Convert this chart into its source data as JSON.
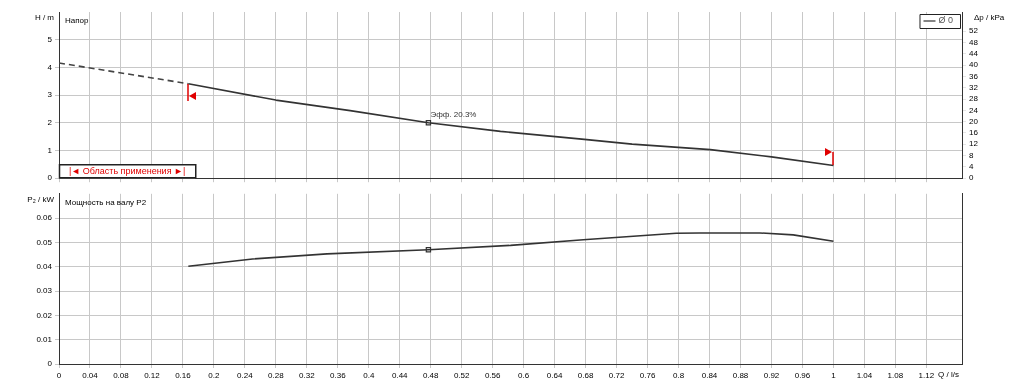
{
  "chart_data": [
    {
      "type": "line",
      "title": "Напор",
      "ylabel": "H / m",
      "y2label": "Δp / kPa",
      "xlim": [
        0,
        1.166
      ],
      "ylim": [
        0,
        6
      ],
      "y2lim": [
        0,
        58.8
      ],
      "xticks": [
        0,
        0.04,
        0.08,
        0.12,
        0.16,
        0.2,
        0.24,
        0.28,
        0.32,
        0.36,
        0.4,
        0.44,
        0.48,
        0.52,
        0.56,
        0.6,
        0.64,
        0.68,
        0.72,
        0.76,
        0.8,
        0.84,
        0.88,
        0.92,
        0.96,
        1,
        1.04,
        1.08,
        1.12
      ],
      "yticks": [
        0,
        1,
        2,
        3,
        4,
        5
      ],
      "y2ticks": [
        0,
        4,
        8,
        12,
        16,
        20,
        24,
        28,
        32,
        36,
        40,
        44,
        48,
        52
      ],
      "series": [
        {
          "color": "#444444",
          "line_style": "dashed",
          "x": [
            0,
            0.167
          ],
          "values": [
            4.16,
            3.41
          ]
        },
        {
          "name": "Ø 0",
          "color": "#333333",
          "line_style": "solid",
          "x": [
            0.167,
            0.28,
            0.376,
            0.477,
            0.57,
            0.675,
            0.74,
            0.841,
            0.92,
            1.0
          ],
          "values": [
            3.41,
            2.82,
            2.44,
            2.0,
            1.69,
            1.41,
            1.23,
            1.03,
            0.77,
            0.46
          ]
        },
        {
          "type": "scatter",
          "marker": "square",
          "color": "#333333",
          "x": [
            0.477
          ],
          "values": [
            2.0
          ]
        }
      ],
      "annotations": [
        {
          "text": "Эфф. 20.3%",
          "x": 0.477,
          "y": 2.0
        },
        "|◄ Область применения ►|"
      ],
      "grid": true,
      "legend": "top right",
      "tick_labels": "y"
    },
    {
      "type": "line",
      "title": "Мощность на валу P2",
      "ylabel": "P₂ / kW",
      "xlabel": "Q / l/s",
      "xlim": [
        0,
        1.166
      ],
      "ylim": [
        0,
        0.07
      ],
      "xticks": [
        0,
        0.04,
        0.08,
        0.12,
        0.16,
        0.2,
        0.24,
        0.28,
        0.32,
        0.36,
        0.4,
        0.44,
        0.48,
        0.52,
        0.56,
        0.6,
        0.64,
        0.68,
        0.72,
        0.76,
        0.8,
        0.84,
        0.88,
        0.92,
        0.96,
        1,
        1.04,
        1.08,
        1.12
      ],
      "yticks": [
        0,
        0.01,
        0.02,
        0.03,
        0.04,
        0.05,
        0.06
      ],
      "series": [
        {
          "color": "#333333",
          "line_style": "solid",
          "x": [
            0.167,
            0.25,
            0.346,
            0.477,
            0.583,
            0.677,
            0.797,
            0.827,
            0.905,
            0.948,
            1.0
          ],
          "values": [
            0.0402,
            0.0432,
            0.0453,
            0.047,
            0.0488,
            0.0511,
            0.0538,
            0.0539,
            0.0539,
            0.0531,
            0.0505
          ]
        },
        {
          "type": "scatter",
          "marker": "square",
          "color": "#333333",
          "x": [
            0.477
          ],
          "values": [
            0.047
          ]
        }
      ],
      "grid": true
    }
  ]
}
